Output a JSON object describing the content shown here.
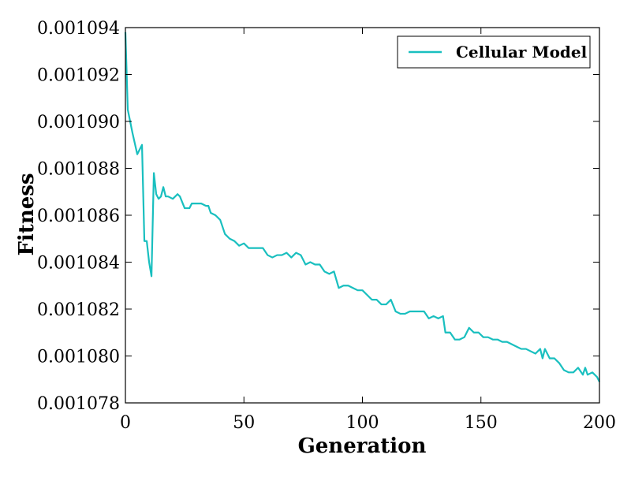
{
  "chart_data": {
    "type": "line",
    "title": "",
    "xlabel": "Generation",
    "ylabel": "Fitness",
    "xlim": [
      0,
      200
    ],
    "ylim": [
      0.001078,
      0.001094
    ],
    "x_ticks": [
      0,
      50,
      100,
      150,
      200
    ],
    "x_tick_labels": [
      "0",
      "50",
      "100",
      "150",
      "200"
    ],
    "y_ticks": [
      0.001078,
      0.00108,
      0.001082,
      0.001084,
      0.001086,
      0.001088,
      0.00109,
      0.001092,
      0.001094
    ],
    "y_tick_labels": [
      "0.001078",
      "0.001080",
      "0.001082",
      "0.001084",
      "0.001086",
      "0.001088",
      "0.001090",
      "0.001092",
      "0.001094"
    ],
    "grid": false,
    "legend_position": "top-right",
    "series": [
      {
        "name": "Cellular Model",
        "color": "#19BFBF",
        "x": [
          0,
          1,
          3,
          5,
          7,
          8,
          9,
          10,
          11,
          12,
          13,
          14,
          15,
          16,
          17,
          18,
          20,
          22,
          23,
          25,
          27,
          28,
          30,
          32,
          34,
          35,
          36,
          38,
          40,
          42,
          44,
          46,
          48,
          50,
          52,
          54,
          56,
          58,
          60,
          62,
          64,
          66,
          68,
          70,
          72,
          74,
          76,
          78,
          80,
          82,
          84,
          86,
          88,
          90,
          92,
          94,
          96,
          98,
          100,
          102,
          104,
          106,
          108,
          110,
          112,
          114,
          116,
          118,
          120,
          122,
          124,
          126,
          128,
          130,
          132,
          134,
          135,
          137,
          139,
          141,
          143,
          145,
          147,
          149,
          151,
          153,
          155,
          157,
          159,
          161,
          163,
          165,
          167,
          169,
          171,
          173,
          175,
          176,
          177,
          179,
          181,
          183,
          185,
          187,
          189,
          191,
          193,
          194,
          195,
          197,
          199,
          200
        ],
        "y": [
          0.0010938,
          0.0010905,
          0.0010895,
          0.0010886,
          0.001089,
          0.0010849,
          0.0010849,
          0.001084,
          0.0010834,
          0.0010878,
          0.0010869,
          0.0010867,
          0.0010868,
          0.0010872,
          0.0010868,
          0.0010868,
          0.0010867,
          0.0010869,
          0.0010868,
          0.0010863,
          0.0010863,
          0.0010865,
          0.0010865,
          0.0010865,
          0.0010864,
          0.0010864,
          0.0010861,
          0.001086,
          0.0010858,
          0.0010852,
          0.001085,
          0.0010849,
          0.0010847,
          0.0010848,
          0.0010846,
          0.0010846,
          0.0010846,
          0.0010846,
          0.0010843,
          0.0010842,
          0.0010843,
          0.0010843,
          0.0010844,
          0.0010842,
          0.0010844,
          0.0010843,
          0.0010839,
          0.001084,
          0.0010839,
          0.0010839,
          0.0010836,
          0.0010835,
          0.0010836,
          0.0010829,
          0.001083,
          0.001083,
          0.0010829,
          0.0010828,
          0.0010828,
          0.0010826,
          0.0010824,
          0.0010824,
          0.0010822,
          0.0010822,
          0.0010824,
          0.0010819,
          0.0010818,
          0.0010818,
          0.0010819,
          0.0010819,
          0.0010819,
          0.0010819,
          0.0010816,
          0.0010817,
          0.0010816,
          0.0010817,
          0.001081,
          0.001081,
          0.0010807,
          0.0010807,
          0.0010808,
          0.0010812,
          0.001081,
          0.001081,
          0.0010808,
          0.0010808,
          0.0010807,
          0.0010807,
          0.0010806,
          0.0010806,
          0.0010805,
          0.0010804,
          0.0010803,
          0.0010803,
          0.0010802,
          0.0010801,
          0.0010803,
          0.0010799,
          0.0010803,
          0.0010799,
          0.0010799,
          0.0010797,
          0.0010794,
          0.0010793,
          0.0010793,
          0.0010795,
          0.0010792,
          0.0010795,
          0.0010792,
          0.0010793,
          0.0010791,
          0.0010789
        ]
      }
    ]
  }
}
